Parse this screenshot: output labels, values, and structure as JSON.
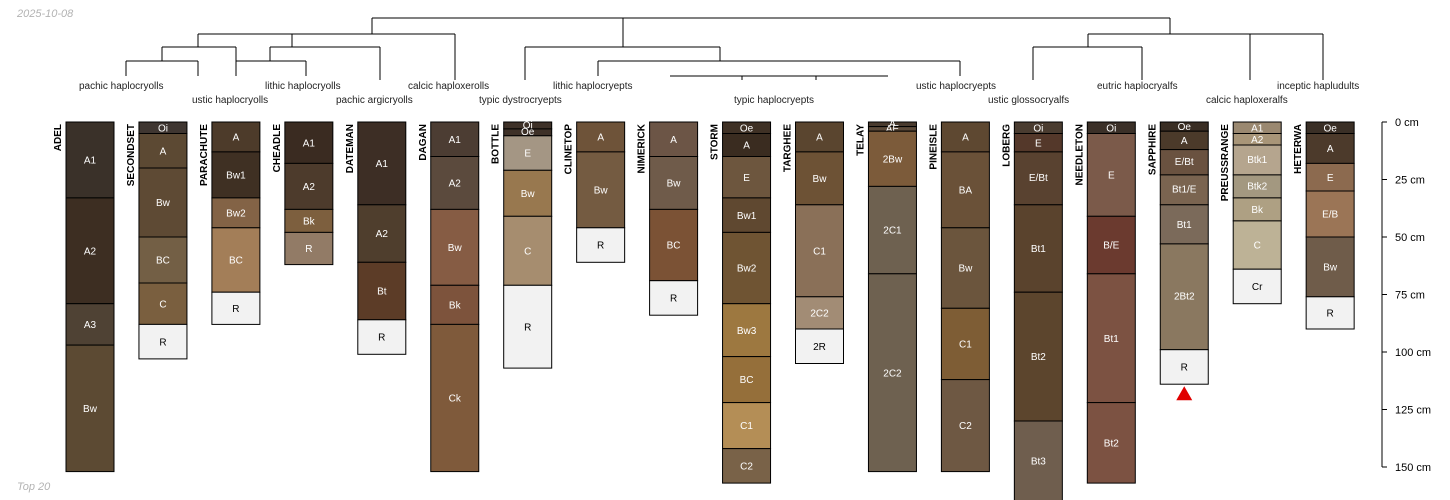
{
  "date_label": "2025-10-08",
  "caption": "Top 20",
  "depth_axis": {
    "max_cm": 150,
    "ticks": [
      {
        "cm": 0,
        "label": "0 cm"
      },
      {
        "cm": 25,
        "label": "25 cm"
      },
      {
        "cm": 50,
        "label": "50 cm"
      },
      {
        "cm": 75,
        "label": "75 cm"
      },
      {
        "cm": 100,
        "label": "100 cm"
      },
      {
        "cm": 125,
        "label": "125 cm"
      },
      {
        "cm": 150,
        "label": "150 cm"
      }
    ]
  },
  "taxonomic_labels": [
    "pachic haplocryolls",
    "ustic haplocryolls",
    "lithic haplocryolls",
    "pachic argicryolls",
    "calcic haploxerolls",
    "typic dystrocryepts",
    "lithic haplocryepts",
    "typic haplocryepts",
    "ustic haplocryepts",
    "ustic glossocryalfs",
    "eutric haplocryalfs",
    "calcic haploxeralfs",
    "inceptic hapludults"
  ],
  "profiles": [
    {
      "name": "ADEL",
      "horizons": [
        {
          "name": "A1",
          "top": 0,
          "bottom": 33,
          "color": "#3a3129"
        },
        {
          "name": "A2",
          "top": 33,
          "bottom": 79,
          "color": "#3d2e22"
        },
        {
          "name": "A3",
          "top": 79,
          "bottom": 97,
          "color": "#4f4234"
        },
        {
          "name": "Bw",
          "top": 97,
          "bottom": 152,
          "color": "#5c4a33"
        }
      ]
    },
    {
      "name": "SECONDSET",
      "horizons": [
        {
          "name": "Oi",
          "top": 0,
          "bottom": 5,
          "color": "#3f3631"
        },
        {
          "name": "A",
          "top": 5,
          "bottom": 20,
          "color": "#5c4933"
        },
        {
          "name": "Bw",
          "top": 20,
          "bottom": 50,
          "color": "#5e4a34"
        },
        {
          "name": "BC",
          "top": 50,
          "bottom": 70,
          "color": "#735f45"
        },
        {
          "name": "C",
          "top": 70,
          "bottom": 88,
          "color": "#7a5f3f"
        },
        {
          "name": "R",
          "top": 88,
          "bottom": 103,
          "color": "#f2f2f2"
        }
      ]
    },
    {
      "name": "PARACHUTE",
      "horizons": [
        {
          "name": "A",
          "top": 0,
          "bottom": 13,
          "color": "#4d3b2a"
        },
        {
          "name": "Bw1",
          "top": 13,
          "bottom": 33,
          "color": "#3f3023"
        },
        {
          "name": "Bw2",
          "top": 33,
          "bottom": 46,
          "color": "#836346"
        },
        {
          "name": "BC",
          "top": 46,
          "bottom": 74,
          "color": "#a37e58"
        },
        {
          "name": "R",
          "top": 74,
          "bottom": 88,
          "color": "#f2f2f2"
        }
      ]
    },
    {
      "name": "CHEADLE",
      "horizons": [
        {
          "name": "A1",
          "top": 0,
          "bottom": 18,
          "color": "#3a2b21"
        },
        {
          "name": "A2",
          "top": 18,
          "bottom": 38,
          "color": "#4d3b2c"
        },
        {
          "name": "Bk",
          "top": 38,
          "bottom": 48,
          "color": "#7d5f3e"
        },
        {
          "name": "R",
          "top": 48,
          "bottom": 62,
          "color": "#927b66"
        }
      ]
    },
    {
      "name": "DATEMAN",
      "horizons": [
        {
          "name": "A1",
          "top": 0,
          "bottom": 36,
          "color": "#3d2e25"
        },
        {
          "name": "A2",
          "top": 36,
          "bottom": 61,
          "color": "#4f3e2d"
        },
        {
          "name": "Bt",
          "top": 61,
          "bottom": 86,
          "color": "#5c3c27"
        },
        {
          "name": "R",
          "top": 86,
          "bottom": 101,
          "color": "#f2f2f2"
        }
      ]
    },
    {
      "name": "DAGAN",
      "horizons": [
        {
          "name": "A1",
          "top": 0,
          "bottom": 15,
          "color": "#4c3d33"
        },
        {
          "name": "A2",
          "top": 15,
          "bottom": 38,
          "color": "#5b4a3d"
        },
        {
          "name": "Bw",
          "top": 38,
          "bottom": 71,
          "color": "#865c44"
        },
        {
          "name": "Bk",
          "top": 71,
          "bottom": 88,
          "color": "#7d533c"
        },
        {
          "name": "Ck",
          "top": 88,
          "bottom": 152,
          "color": "#7f5a3b"
        }
      ]
    },
    {
      "name": "BOTTLE",
      "horizons": [
        {
          "name": "Oi",
          "top": 0,
          "bottom": 3,
          "color": "#3e3128"
        },
        {
          "name": "Oe",
          "top": 3,
          "bottom": 6,
          "color": "#3e3128"
        },
        {
          "name": "E",
          "top": 6,
          "bottom": 21,
          "color": "#a49684"
        },
        {
          "name": "Bw",
          "top": 21,
          "bottom": 41,
          "color": "#98784f"
        },
        {
          "name": "C",
          "top": 41,
          "bottom": 71,
          "color": "#a68d6f"
        },
        {
          "name": "R",
          "top": 71,
          "bottom": 107,
          "color": "#f2f2f2"
        }
      ]
    },
    {
      "name": "CLINETOP",
      "horizons": [
        {
          "name": "A",
          "top": 0,
          "bottom": 13,
          "color": "#6e5339"
        },
        {
          "name": "Bw",
          "top": 13,
          "bottom": 46,
          "color": "#745b41"
        },
        {
          "name": "R",
          "top": 46,
          "bottom": 61,
          "color": "#f2f2f2"
        }
      ]
    },
    {
      "name": "NIMERICK",
      "horizons": [
        {
          "name": "A",
          "top": 0,
          "bottom": 15,
          "color": "#6c5546"
        },
        {
          "name": "Bw",
          "top": 15,
          "bottom": 38,
          "color": "#6f5b4a"
        },
        {
          "name": "BC",
          "top": 38,
          "bottom": 69,
          "color": "#7b5235"
        },
        {
          "name": "R",
          "top": 69,
          "bottom": 84,
          "color": "#f2f2f2"
        }
      ]
    },
    {
      "name": "STORM",
      "horizons": [
        {
          "name": "Oe",
          "top": 0,
          "bottom": 5,
          "color": "#3f3125"
        },
        {
          "name": "A",
          "top": 5,
          "bottom": 15,
          "color": "#3a2c20"
        },
        {
          "name": "E",
          "top": 15,
          "bottom": 33,
          "color": "#6d563e"
        },
        {
          "name": "Bw1",
          "top": 33,
          "bottom": 48,
          "color": "#5f4830"
        },
        {
          "name": "Bw2",
          "top": 48,
          "bottom": 79,
          "color": "#6f5433"
        },
        {
          "name": "Bw3",
          "top": 79,
          "bottom": 102,
          "color": "#9d7840"
        },
        {
          "name": "BC",
          "top": 102,
          "bottom": 122,
          "color": "#956f3a"
        },
        {
          "name": "C1",
          "top": 122,
          "bottom": 142,
          "color": "#b48e56"
        },
        {
          "name": "C2",
          "top": 142,
          "bottom": 157,
          "color": "#796248"
        }
      ]
    },
    {
      "name": "TARGHEE",
      "horizons": [
        {
          "name": "A",
          "top": 0,
          "bottom": 13,
          "color": "#5a452f"
        },
        {
          "name": "Bw",
          "top": 13,
          "bottom": 36,
          "color": "#6d5235"
        },
        {
          "name": "C1",
          "top": 36,
          "bottom": 76,
          "color": "#8a7058"
        },
        {
          "name": "2C2",
          "top": 76,
          "bottom": 90,
          "color": "#a28c75"
        },
        {
          "name": "2R",
          "top": 90,
          "bottom": 105,
          "color": "#f2f2f2"
        }
      ]
    },
    {
      "name": "TELAY",
      "horizons": [
        {
          "name": "A",
          "top": 0,
          "bottom": 2,
          "color": "#4a3b2e"
        },
        {
          "name": "AE",
          "top": 2,
          "bottom": 4,
          "color": "#5c4a39"
        },
        {
          "name": "2Bw",
          "top": 4,
          "bottom": 28,
          "color": "#7c5b3a"
        },
        {
          "name": "2C1",
          "top": 28,
          "bottom": 66,
          "color": "#6e6150"
        },
        {
          "name": "2C2",
          "top": 66,
          "bottom": 152,
          "color": "#6e6150"
        }
      ]
    },
    {
      "name": "PINEISLE",
      "horizons": [
        {
          "name": "A",
          "top": 0,
          "bottom": 13,
          "color": "#5e4831"
        },
        {
          "name": "BA",
          "top": 13,
          "bottom": 46,
          "color": "#6a5138"
        },
        {
          "name": "Bw",
          "top": 46,
          "bottom": 81,
          "color": "#6b553d"
        },
        {
          "name": "C1",
          "top": 81,
          "bottom": 112,
          "color": "#7e5d35"
        },
        {
          "name": "C2",
          "top": 112,
          "bottom": 152,
          "color": "#6e5843"
        }
      ]
    },
    {
      "name": "LOBERG",
      "horizons": [
        {
          "name": "Oi",
          "top": 0,
          "bottom": 5,
          "color": "#4a3c30"
        },
        {
          "name": "E",
          "top": 5,
          "bottom": 13,
          "color": "#54382a"
        },
        {
          "name": "E/Bt",
          "top": 13,
          "bottom": 36,
          "color": "#594230"
        },
        {
          "name": "Bt1",
          "top": 36,
          "bottom": 74,
          "color": "#5a432d"
        },
        {
          "name": "Bt2",
          "top": 74,
          "bottom": 130,
          "color": "#5c452d"
        },
        {
          "name": "Bt3",
          "top": 130,
          "bottom": 165,
          "color": "#6f5e4e"
        }
      ]
    },
    {
      "name": "NEEDLETON",
      "horizons": [
        {
          "name": "Oi",
          "top": 0,
          "bottom": 5,
          "color": "#3b3028"
        },
        {
          "name": "E",
          "top": 5,
          "bottom": 41,
          "color": "#7b5a4a"
        },
        {
          "name": "B/E",
          "top": 41,
          "bottom": 66,
          "color": "#6b3a2f"
        },
        {
          "name": "Bt1",
          "top": 66,
          "bottom": 122,
          "color": "#7c5242"
        },
        {
          "name": "Bt2",
          "top": 122,
          "bottom": 157,
          "color": "#7c5242"
        }
      ]
    },
    {
      "name": "SAPPHIRE",
      "horizons": [
        {
          "name": "Oe",
          "top": 0,
          "bottom": 4,
          "color": "#3a2e24"
        },
        {
          "name": "A",
          "top": 4,
          "bottom": 12,
          "color": "#4b3a2a"
        },
        {
          "name": "E/Bt",
          "top": 12,
          "bottom": 23,
          "color": "#6a5240"
        },
        {
          "name": "Bt1/E",
          "top": 23,
          "bottom": 36,
          "color": "#7a6450"
        },
        {
          "name": "Bt1",
          "top": 36,
          "bottom": 53,
          "color": "#7b6a5a"
        },
        {
          "name": "2Bt2",
          "top": 53,
          "bottom": 99,
          "color": "#8a7860"
        },
        {
          "name": "R",
          "top": 99,
          "bottom": 114,
          "color": "#f2f2f2"
        }
      ]
    },
    {
      "name": "PREUSSRANGE",
      "horizons": [
        {
          "name": "A1",
          "top": 0,
          "bottom": 5,
          "color": "#9a8870"
        },
        {
          "name": "A2",
          "top": 5,
          "bottom": 10,
          "color": "#a89578"
        },
        {
          "name": "Btk1",
          "top": 10,
          "bottom": 23,
          "color": "#b5a58e"
        },
        {
          "name": "Btk2",
          "top": 23,
          "bottom": 33,
          "color": "#a39880"
        },
        {
          "name": "Bk",
          "top": 33,
          "bottom": 43,
          "color": "#aea083"
        },
        {
          "name": "C",
          "top": 43,
          "bottom": 64,
          "color": "#bdb296"
        },
        {
          "name": "Cr",
          "top": 64,
          "bottom": 79,
          "color": "#f2f2f2"
        }
      ]
    },
    {
      "name": "HETERWA",
      "horizons": [
        {
          "name": "Oe",
          "top": 0,
          "bottom": 5,
          "color": "#3a2f26"
        },
        {
          "name": "A",
          "top": 5,
          "bottom": 18,
          "color": "#4c3a2b"
        },
        {
          "name": "E",
          "top": 18,
          "bottom": 30,
          "color": "#8c6a4f"
        },
        {
          "name": "E/B",
          "top": 30,
          "bottom": 50,
          "color": "#9b7556"
        },
        {
          "name": "Bw",
          "top": 50,
          "bottom": 76,
          "color": "#6f5c4a"
        },
        {
          "name": "R",
          "top": 76,
          "bottom": 90,
          "color": "#f2f2f2"
        }
      ]
    }
  ]
}
